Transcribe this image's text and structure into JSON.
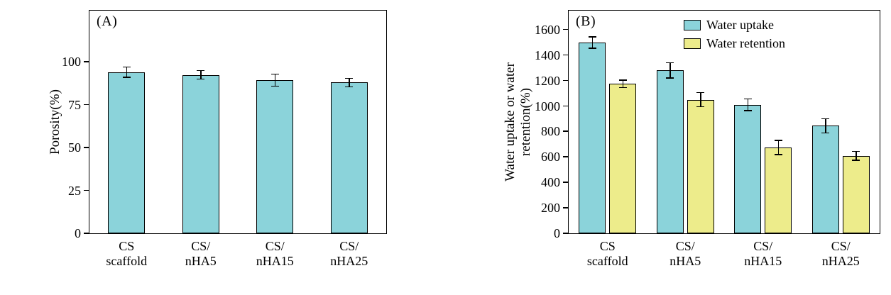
{
  "figure": {
    "panels": [
      "(A)",
      "(B)"
    ]
  },
  "chart_data": [
    {
      "type": "bar",
      "panel_label": "(A)",
      "title": "",
      "ylabel": "Porosity(%)",
      "xlabel": "",
      "categories": [
        "CS\nscaffold",
        "CS/\nnHA5",
        "CS/\nnHA15",
        "CS/\nnHA25"
      ],
      "series": [
        {
          "name": "Porosity",
          "color": "#8bd3da",
          "values": [
            94,
            92.5,
            89.5,
            88
          ],
          "errors": [
            3,
            2.5,
            3.5,
            2.5
          ]
        }
      ],
      "ylim": [
        0,
        130
      ],
      "yticks": [
        0,
        25,
        50,
        75,
        100
      ],
      "grid": false,
      "legend": false
    },
    {
      "type": "bar",
      "panel_label": "(B)",
      "title": "",
      "ylabel": "Water uptake or water\nretention(%)",
      "xlabel": "",
      "categories": [
        "CS\nscaffold",
        "CS/\nnHA5",
        "CS/\nnHA15",
        "CS/\nnHA25"
      ],
      "series": [
        {
          "name": "Water uptake",
          "color": "#8bd3da",
          "values": [
            1500,
            1280,
            1010,
            845
          ],
          "errors": [
            45,
            60,
            45,
            55
          ]
        },
        {
          "name": "Water retention",
          "color": "#edec8b",
          "values": [
            1175,
            1050,
            675,
            610
          ],
          "errors": [
            30,
            55,
            55,
            35
          ]
        }
      ],
      "ylim": [
        0,
        1750
      ],
      "yticks": [
        0,
        200,
        400,
        600,
        800,
        1000,
        1200,
        1400,
        1600
      ],
      "grid": false,
      "legend": true,
      "legend_position": "top-right",
      "legend_labels": [
        "Water uptake",
        "Water retention"
      ]
    }
  ]
}
